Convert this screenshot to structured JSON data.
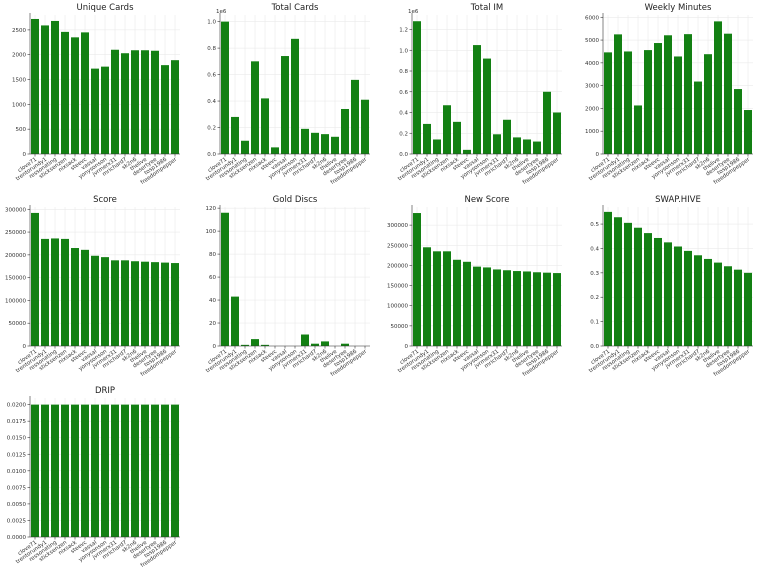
{
  "figure": {
    "bar_color": "#138013",
    "categories": [
      "clove71",
      "trentorundy1",
      "ressonating",
      "sticksenzen",
      "nixsack",
      "steevc",
      "vassal",
      "yonysonson",
      "jvrmerx31",
      "mrichard7",
      "sk2n6",
      "thelive",
      "desertyee",
      "tosp1986",
      "freedompepper"
    ]
  },
  "chart_data": [
    {
      "type": "bar",
      "title": "Unique Cards",
      "ylim": [
        0,
        2800
      ],
      "yticks": [
        0,
        500,
        1000,
        1500,
        2000,
        2500
      ],
      "ytick_labels": [
        "0",
        "500",
        "1000",
        "1500",
        "2000",
        "2500"
      ],
      "exponent": "",
      "values": [
        2720,
        2590,
        2680,
        2460,
        2350,
        2450,
        1720,
        1760,
        2100,
        2030,
        2090,
        2090,
        2080,
        1790,
        1890
      ]
    },
    {
      "type": "bar",
      "title": "Total Cards",
      "ylim": [
        0,
        1050000
      ],
      "yticks": [
        0,
        200000,
        400000,
        600000,
        800000,
        1000000
      ],
      "ytick_labels": [
        "0.0",
        "0.2",
        "0.4",
        "0.6",
        "0.8",
        "1.0"
      ],
      "exponent": "1e6",
      "values": [
        1000000,
        280000,
        100000,
        700000,
        420000,
        50000,
        740000,
        870000,
        190000,
        160000,
        150000,
        130000,
        340000,
        560000,
        410000
      ]
    },
    {
      "type": "bar",
      "title": "Total IM",
      "ylim": [
        0,
        1340000
      ],
      "yticks": [
        0,
        200000,
        400000,
        600000,
        800000,
        1000000,
        1200000
      ],
      "ytick_labels": [
        "0.0",
        "0.2",
        "0.4",
        "0.6",
        "0.8",
        "1.0",
        "1.2"
      ],
      "exponent": "1e6",
      "values": [
        1280000,
        290000,
        140000,
        470000,
        310000,
        40000,
        1050000,
        920000,
        190000,
        330000,
        160000,
        140000,
        120000,
        600000,
        400000
      ]
    },
    {
      "type": "bar",
      "title": "Weekly Minutes",
      "ylim": [
        0,
        6100
      ],
      "yticks": [
        0,
        1000,
        2000,
        3000,
        4000,
        5000,
        6000
      ],
      "ytick_labels": [
        "0",
        "1000",
        "2000",
        "3000",
        "4000",
        "5000",
        "6000"
      ],
      "exponent": "",
      "values": [
        4460,
        5250,
        4500,
        2130,
        4560,
        4870,
        5210,
        4280,
        5260,
        3180,
        4380,
        5820,
        5280,
        2850,
        1930
      ]
    },
    {
      "type": "bar",
      "title": "Score",
      "ylim": [
        0,
        305000
      ],
      "yticks": [
        0,
        50000,
        100000,
        150000,
        200000,
        250000,
        300000
      ],
      "ytick_labels": [
        "0",
        "50000",
        "100000",
        "150000",
        "200000",
        "250000",
        "300000"
      ],
      "exponent": "",
      "values": [
        292000,
        235000,
        236000,
        235000,
        215000,
        211000,
        198000,
        195000,
        188000,
        188000,
        186000,
        185000,
        184000,
        183000,
        182000
      ]
    },
    {
      "type": "bar",
      "title": "Gold Discs",
      "ylim": [
        0,
        121
      ],
      "yticks": [
        0,
        20,
        40,
        60,
        80,
        100,
        120
      ],
      "ytick_labels": [
        "0",
        "20",
        "40",
        "60",
        "80",
        "100",
        "120"
      ],
      "exponent": "",
      "values": [
        116,
        43,
        1,
        6,
        1,
        0,
        0,
        0,
        10,
        2,
        4,
        0,
        2,
        0,
        0
      ]
    },
    {
      "type": "bar",
      "title": "New Score",
      "ylim": [
        0,
        345000
      ],
      "yticks": [
        0,
        50000,
        100000,
        150000,
        200000,
        250000,
        300000
      ],
      "ytick_labels": [
        "0",
        "50000",
        "100000",
        "150000",
        "200000",
        "250000",
        "300000"
      ],
      "exponent": "",
      "values": [
        330000,
        245000,
        235000,
        235000,
        214000,
        209000,
        197000,
        195000,
        190000,
        188000,
        186000,
        185000,
        183000,
        182000,
        181000
      ]
    },
    {
      "type": "bar",
      "title": "SWAP.HIVE",
      "ylim": [
        0,
        0.57
      ],
      "yticks": [
        0,
        0.1,
        0.2,
        0.3,
        0.4,
        0.5
      ],
      "ytick_labels": [
        "0.0",
        "0.1",
        "0.2",
        "0.3",
        "0.4",
        "0.5"
      ],
      "exponent": "",
      "values": [
        0.55,
        0.528,
        0.505,
        0.485,
        0.463,
        0.443,
        0.425,
        0.408,
        0.39,
        0.372,
        0.357,
        0.342,
        0.327,
        0.313,
        0.3
      ]
    },
    {
      "type": "bar",
      "title": "DRIP",
      "ylim": [
        0,
        0.021
      ],
      "yticks": [
        0,
        0.0025,
        0.005,
        0.0075,
        0.01,
        0.0125,
        0.015,
        0.0175,
        0.02
      ],
      "ytick_labels": [
        "0.0000",
        "0.0025",
        "0.0050",
        "0.0075",
        "0.0100",
        "0.0125",
        "0.0150",
        "0.0175",
        "0.0200"
      ],
      "exponent": "",
      "values": [
        0.02,
        0.02,
        0.02,
        0.02,
        0.02,
        0.02,
        0.02,
        0.02,
        0.02,
        0.02,
        0.02,
        0.02,
        0.02,
        0.02,
        0.02
      ]
    }
  ]
}
